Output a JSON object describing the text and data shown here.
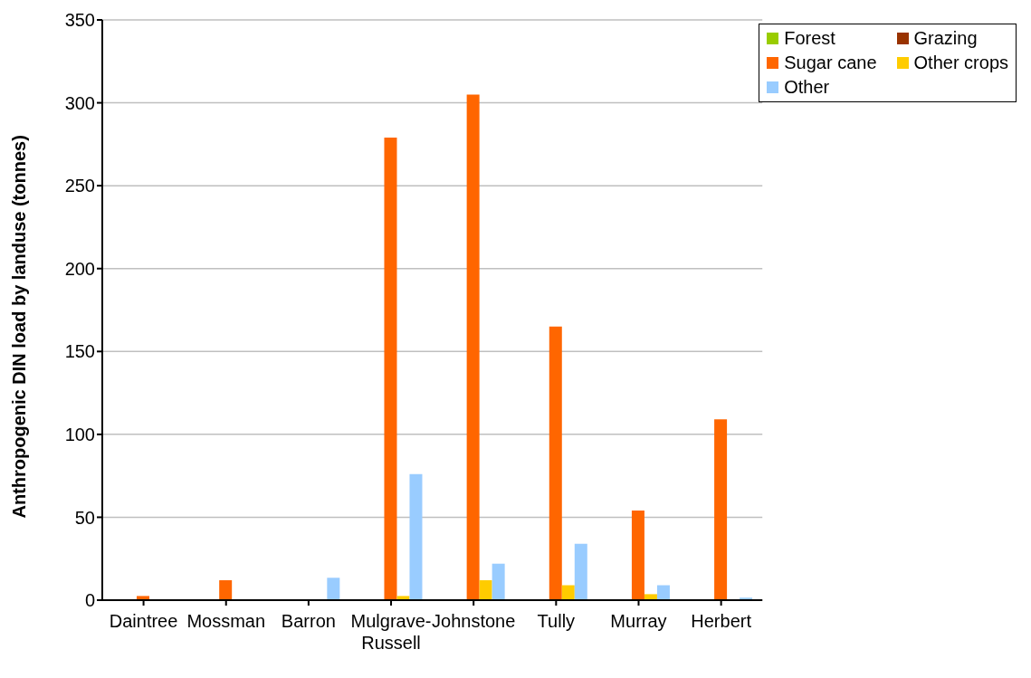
{
  "chart_data": {
    "type": "bar",
    "ylabel": "Anthropogenic DIN load by landuse (tonnes)",
    "categories": [
      "Daintree",
      "Mossman",
      "Barron",
      "Mulgrave-Russell",
      "Johnstone",
      "Tully",
      "Murray",
      "Herbert"
    ],
    "series": [
      {
        "name": "Forest",
        "color": "#99cc00",
        "values": [
          0,
          0,
          0,
          0,
          0,
          0,
          0,
          0
        ]
      },
      {
        "name": "Grazing",
        "color": "#993300",
        "values": [
          0,
          0,
          0,
          0,
          0,
          0,
          0,
          0
        ]
      },
      {
        "name": "Sugar cane",
        "color": "#ff6600",
        "values": [
          2.5,
          12,
          0,
          279,
          305,
          165,
          54,
          109
        ]
      },
      {
        "name": "Other crops",
        "color": "#ffcc00",
        "values": [
          0,
          0,
          0,
          2.5,
          12,
          9,
          3.6,
          0
        ]
      },
      {
        "name": "Other",
        "color": "#99ccff",
        "values": [
          0,
          0,
          13.5,
          76,
          22,
          34,
          9,
          1.5
        ]
      }
    ],
    "ylim": [
      0,
      350
    ],
    "yticks": [
      0,
      50,
      100,
      150,
      200,
      250,
      300,
      350
    ],
    "grid": "y",
    "legend": "top right"
  }
}
